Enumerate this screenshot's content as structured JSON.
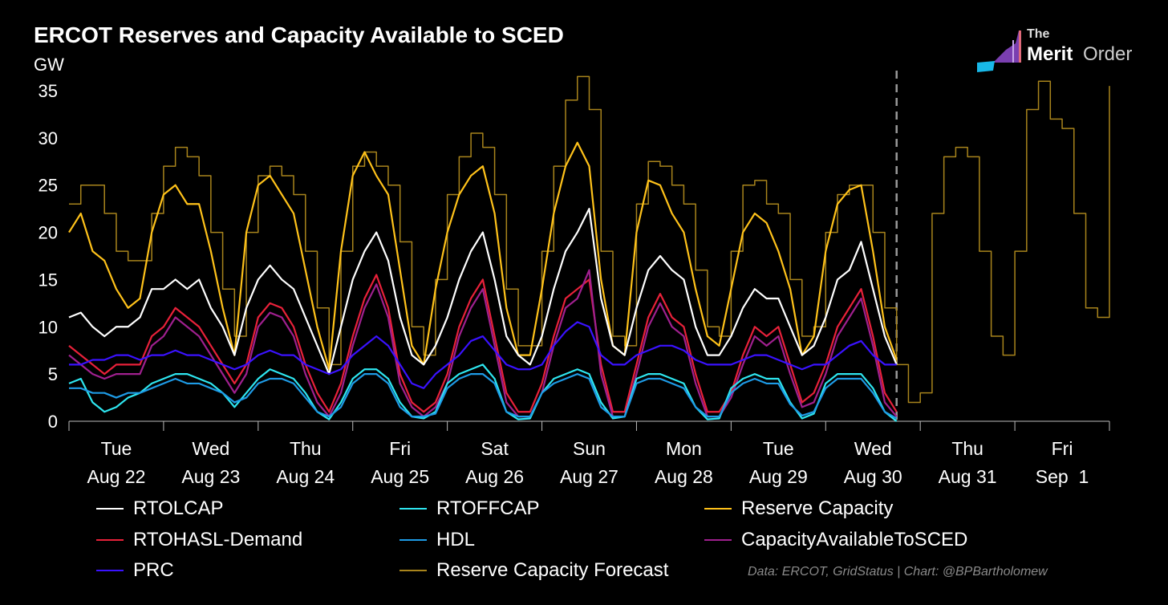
{
  "title": "ERCOT Reserves and Capacity Available to SCED",
  "logo": {
    "the": "The",
    "merit": "Merit",
    "order": "Order"
  },
  "credit": "Data: ERCOT, GridStatus | Chart: @BPBartholomew",
  "chart_data": {
    "type": "line",
    "title": "ERCOT Reserves and Capacity Available to SCED",
    "ylabel": "GW",
    "xlabel": "",
    "ylim": [
      0,
      35
    ],
    "yticks": [
      0,
      5,
      10,
      15,
      20,
      25,
      30,
      35
    ],
    "x_unit": "hours since Aug 22 00:00, 3-hour samples",
    "xlim_hours": [
      0,
      264
    ],
    "xticks": [
      {
        "day": "Tue",
        "date": "Aug 22"
      },
      {
        "day": "Wed",
        "date": "Aug 23"
      },
      {
        "day": "Thu",
        "date": "Aug 24"
      },
      {
        "day": "Fri",
        "date": "Aug 25"
      },
      {
        "day": "Sat",
        "date": "Aug 26"
      },
      {
        "day": "Sun",
        "date": "Aug 27"
      },
      {
        "day": "Mon",
        "date": "Aug 28"
      },
      {
        "day": "Tue",
        "date": "Aug 29"
      },
      {
        "day": "Wed",
        "date": "Aug 30"
      },
      {
        "day": "Thu",
        "date": "Aug 31"
      },
      {
        "day": "Fri",
        "date": "Sep  1"
      }
    ],
    "forecast_start_hour": 210,
    "grid": false,
    "legend_placement": "bottom",
    "series": [
      {
        "name": "Reserve Capacity Forecast",
        "color": "#a8841c",
        "step": true,
        "values": [
          23,
          25,
          25,
          22,
          18,
          17,
          17,
          22,
          27,
          29,
          28,
          26,
          20,
          14,
          9,
          20,
          26,
          27,
          26,
          24,
          18,
          12,
          6,
          18,
          27,
          28.5,
          27,
          25,
          19,
          10,
          7,
          15,
          24,
          28,
          30.5,
          29,
          24,
          14,
          8,
          8,
          18,
          27,
          34,
          36.5,
          33,
          18,
          9,
          8,
          23,
          27.5,
          27,
          25,
          23,
          16,
          10,
          9,
          18,
          25,
          25.5,
          23,
          22,
          15,
          9,
          10,
          20,
          24,
          25,
          25,
          20,
          12,
          6,
          2,
          3,
          22,
          28,
          29,
          28,
          18,
          9,
          7,
          18,
          33,
          36,
          32,
          31,
          22,
          12,
          11,
          35.5
        ]
      },
      {
        "name": "Reserve Capacity",
        "color": "#ffc21a",
        "values": [
          20,
          22,
          18,
          17,
          14,
          12,
          13,
          20,
          24,
          25,
          23,
          23,
          18,
          12,
          7,
          20,
          25,
          26,
          24,
          22,
          16,
          10,
          5.5,
          18,
          26,
          28.5,
          26,
          24,
          16,
          8,
          6,
          14,
          20,
          24,
          26,
          27,
          22,
          12,
          7,
          7,
          14,
          22,
          27,
          29.5,
          27,
          15,
          8,
          7,
          20,
          25.5,
          25,
          22,
          20,
          14,
          9,
          8,
          14,
          20,
          22,
          21,
          18,
          14,
          7,
          9,
          18,
          23,
          24.5,
          25,
          18,
          10,
          6.5
        ]
      },
      {
        "name": "RTOLCAP",
        "color": "#ffffff",
        "values": [
          11,
          11.5,
          10,
          9,
          10,
          10,
          11,
          14,
          14,
          15,
          14,
          15,
          12,
          10,
          7,
          12,
          15,
          16.5,
          15,
          14,
          11,
          8,
          5,
          10,
          15,
          18,
          20,
          17,
          11,
          7,
          6,
          8,
          11,
          15,
          18,
          20,
          15,
          9,
          7,
          6,
          9,
          14,
          18,
          20,
          22.5,
          13,
          8,
          7,
          12,
          16,
          17.5,
          16,
          15,
          10,
          7,
          7,
          9,
          12,
          14,
          13,
          13,
          10,
          7,
          8,
          11,
          15,
          16,
          19,
          14,
          9,
          6
        ]
      },
      {
        "name": "RTOHASL-Demand",
        "color": "#e8213a",
        "values": [
          8,
          7,
          6,
          5,
          6,
          6,
          6,
          9,
          10,
          12,
          11,
          10,
          8,
          6,
          4,
          6,
          11,
          12.5,
          12,
          10,
          6,
          3,
          1,
          4,
          9,
          13,
          15.5,
          12,
          5,
          2,
          1,
          2,
          5,
          10,
          13,
          15,
          9,
          3,
          1,
          1,
          4,
          9,
          13,
          14,
          15,
          6,
          1,
          1,
          6,
          11,
          13.5,
          11,
          10,
          5,
          1,
          1,
          3,
          7,
          10,
          9,
          10,
          6,
          2,
          3,
          6,
          10,
          12,
          14,
          9,
          3,
          1
        ]
      },
      {
        "name": "CapacityAvailableToSCED",
        "color": "#a0208f",
        "values": [
          7,
          6,
          5,
          4.5,
          5,
          5,
          5,
          8,
          9,
          11,
          10,
          9,
          7,
          5,
          3,
          5,
          10,
          11.5,
          11,
          9,
          5,
          2,
          0.5,
          3,
          8,
          12,
          14.5,
          11,
          4,
          1.5,
          0.5,
          1.5,
          4,
          9,
          12,
          14,
          8,
          2,
          0.5,
          0.5,
          3,
          8,
          12,
          13,
          16,
          5,
          0.5,
          0.5,
          5,
          10,
          12.5,
          10,
          9,
          4,
          0.5,
          0.5,
          2.5,
          6,
          9,
          8,
          9,
          5,
          1.5,
          2,
          5,
          9,
          11,
          13,
          8,
          2,
          0.5
        ]
      },
      {
        "name": "PRC",
        "color": "#3a12ff",
        "values": [
          6,
          6,
          6.5,
          6.5,
          7,
          7,
          6.5,
          7,
          7,
          7.5,
          7,
          7,
          6.5,
          6,
          5.5,
          6,
          7,
          7.5,
          7,
          7,
          6,
          5.5,
          5,
          5.5,
          7,
          8,
          9,
          8,
          6,
          4,
          3.5,
          5,
          6,
          7,
          8.5,
          9,
          7.5,
          6,
          5.5,
          5.5,
          6,
          8,
          9.5,
          10.5,
          10,
          7,
          6,
          6,
          7,
          7.5,
          8,
          8,
          7.5,
          6.5,
          6,
          6,
          6,
          6.5,
          7,
          7,
          6.5,
          6,
          5.5,
          6,
          6,
          7,
          8,
          8.5,
          7,
          6,
          6
        ]
      },
      {
        "name": "RTOFFCAP",
        "color": "#2ee6f0",
        "values": [
          4,
          4.5,
          2,
          1,
          1.5,
          2.5,
          3,
          4,
          4.5,
          5,
          5,
          4.5,
          4,
          3,
          1.5,
          3,
          4.5,
          5.5,
          5,
          4.5,
          3,
          1,
          0.2,
          2,
          4.5,
          5.5,
          5.5,
          4.5,
          2,
          0.5,
          0.3,
          1,
          4,
          5,
          5.5,
          6,
          4.5,
          1,
          0.2,
          0.3,
          3,
          4.5,
          5,
          5.5,
          5,
          2,
          0.3,
          0.5,
          4.5,
          5,
          5,
          4.5,
          4,
          1.5,
          0.2,
          0.3,
          3.5,
          4.5,
          5,
          4.5,
          4.5,
          2,
          0.3,
          0.8,
          4,
          5,
          5,
          5,
          3.5,
          1,
          0
        ]
      },
      {
        "name": "HDL",
        "color": "#1e9be6",
        "values": [
          3.5,
          3.5,
          3,
          3,
          2.5,
          3,
          3,
          3.5,
          4,
          4.5,
          4,
          4,
          3.5,
          3,
          2,
          2.5,
          4,
          4.5,
          4.5,
          4,
          2.5,
          1,
          0.5,
          1.5,
          4,
          5,
          5,
          4,
          1.5,
          0.5,
          0.5,
          0.8,
          3.5,
          4.5,
          5,
          5,
          4,
          1,
          0.5,
          0.5,
          3,
          4,
          4.5,
          5,
          4.5,
          1.5,
          0.5,
          0.5,
          4,
          4.5,
          4.5,
          4,
          3.5,
          1.5,
          0.5,
          0.5,
          3,
          4,
          4.5,
          4,
          4,
          1.8,
          0.6,
          1,
          3.5,
          4.5,
          4.5,
          4.5,
          3,
          1,
          0.3
        ]
      }
    ]
  },
  "legend": [
    {
      "label": "RTOLCAP",
      "color": "#ffffff"
    },
    {
      "label": "RTOFFCAP",
      "color": "#2ee6f0"
    },
    {
      "label": "Reserve Capacity",
      "color": "#ffc21a"
    },
    {
      "label": "RTOHASL-Demand",
      "color": "#e8213a"
    },
    {
      "label": "HDL",
      "color": "#1e9be6"
    },
    {
      "label": "CapacityAvailableToSCED",
      "color": "#a0208f"
    },
    {
      "label": "PRC",
      "color": "#3a12ff"
    },
    {
      "label": "Reserve Capacity Forecast",
      "color": "#a8841c"
    }
  ]
}
